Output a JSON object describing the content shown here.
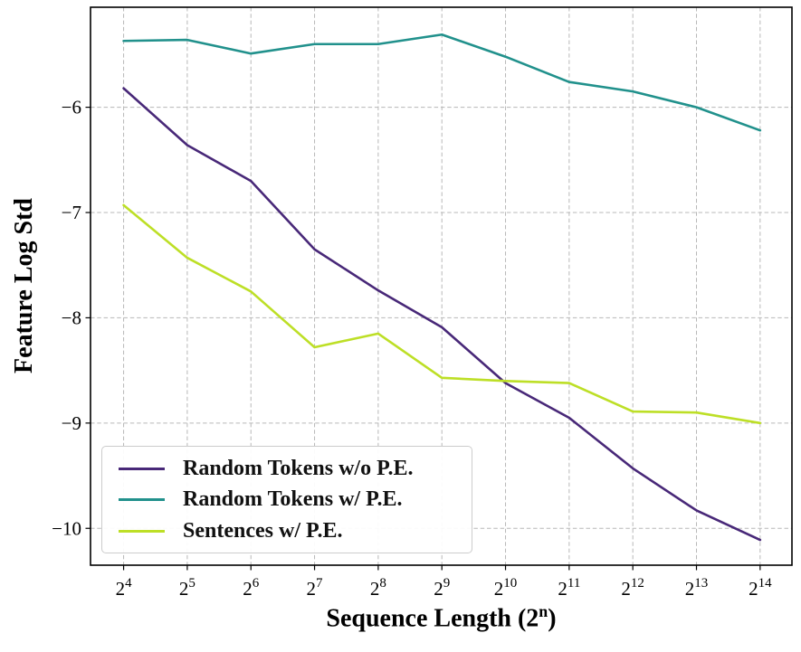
{
  "chart_data": {
    "type": "line",
    "title": "",
    "ylabel": "Feature Log Std",
    "xlabel_parts": {
      "main": "Sequence Length (2",
      "sup": "n",
      "end": ")"
    },
    "x_tick_base": "2",
    "x_exponents": [
      4,
      5,
      6,
      7,
      8,
      9,
      10,
      11,
      12,
      13,
      14
    ],
    "y_ticks": [
      -6,
      -7,
      -8,
      -9,
      -10
    ],
    "ylim": [
      -10.35,
      -5.05
    ],
    "xlim_n": [
      3.48,
      14.5
    ],
    "grid": true,
    "grid_style": "dashed",
    "legend_position": "lower left",
    "series": [
      {
        "name": "Random Tokens w/o P.E.",
        "color": "#482878",
        "values": [
          -5.82,
          -6.36,
          -6.7,
          -7.35,
          -7.74,
          -8.09,
          -8.62,
          -8.95,
          -9.43,
          -9.83,
          -10.11
        ]
      },
      {
        "name": "Random Tokens w/ P.E.",
        "color": "#21918c",
        "values": [
          -5.37,
          -5.36,
          -5.49,
          -5.4,
          -5.4,
          -5.31,
          -5.52,
          -5.76,
          -5.85,
          -6.0,
          -6.22
        ]
      },
      {
        "name": "Sentences w/ P.E.",
        "color": "#bddf26",
        "values": [
          -6.93,
          -7.43,
          -7.75,
          -8.28,
          -8.15,
          -8.57,
          -8.6,
          -8.62,
          -8.89,
          -8.9,
          -9.0
        ]
      }
    ]
  }
}
